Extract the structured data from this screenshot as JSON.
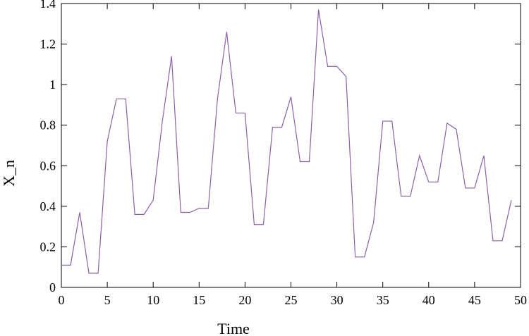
{
  "chart_data": {
    "type": "line",
    "title": "",
    "xlabel": "Time",
    "ylabel": "X_n",
    "xlim": [
      0,
      50
    ],
    "ylim": [
      0,
      1.4
    ],
    "xticks": [
      0,
      5,
      10,
      15,
      20,
      25,
      30,
      35,
      40,
      45,
      50
    ],
    "yticks": [
      0,
      0.2,
      0.4,
      0.6,
      0.8,
      1,
      1.2,
      1.4
    ],
    "grid": false,
    "line_color": "#8b5fa8",
    "series": [
      {
        "x": [
          0,
          1,
          2,
          3,
          4,
          5,
          6,
          7,
          8,
          9,
          10,
          11,
          12,
          13,
          14,
          15,
          16,
          17,
          18,
          19,
          20,
          21,
          22,
          23,
          24,
          25,
          26,
          27,
          28,
          29,
          30,
          31,
          32,
          33,
          34,
          35,
          36,
          37,
          38,
          39,
          40,
          41,
          42,
          43,
          44,
          45,
          46,
          47,
          48,
          49
        ],
        "values": [
          0.11,
          0.11,
          0.37,
          0.07,
          0.07,
          0.72,
          0.93,
          0.93,
          0.36,
          0.36,
          0.43,
          0.82,
          1.14,
          0.37,
          0.37,
          0.39,
          0.39,
          0.93,
          1.26,
          0.86,
          0.86,
          0.31,
          0.31,
          0.79,
          0.79,
          0.94,
          0.62,
          0.62,
          1.37,
          1.09,
          1.09,
          1.04,
          0.15,
          0.15,
          0.32,
          0.82,
          0.82,
          0.45,
          0.45,
          0.65,
          0.52,
          0.52,
          0.81,
          0.78,
          0.49,
          0.49,
          0.65,
          0.23,
          0.23,
          0.43
        ]
      }
    ]
  }
}
